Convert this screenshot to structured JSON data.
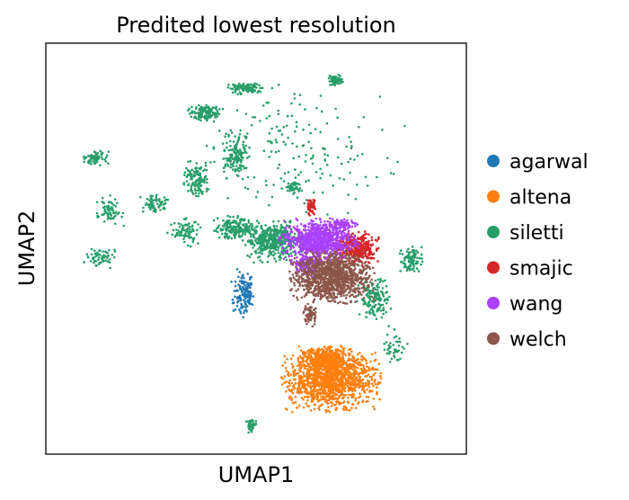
{
  "chart_data": {
    "type": "scatter",
    "title": "Predited lowest resolution",
    "xlabel": "UMAP1",
    "ylabel": "UMAP2",
    "xticks": [],
    "yticks": [],
    "grid": false,
    "legend_position": "right",
    "series": [
      {
        "name": "agarwal",
        "color": "#1f77b4",
        "clusters": [
          {
            "cx": 4.7,
            "cy": 3.9,
            "rx": 0.25,
            "ry": 0.55,
            "count": 140
          }
        ]
      },
      {
        "name": "altena",
        "color": "#ff7f0e",
        "clusters": [
          {
            "cx": 6.8,
            "cy": 1.8,
            "rx": 1.0,
            "ry": 0.65,
            "count": 1300
          },
          {
            "cx": 6.6,
            "cy": 2.3,
            "rx": 0.55,
            "ry": 0.3,
            "count": 350
          }
        ]
      },
      {
        "name": "siletti",
        "color": "#279e68",
        "clusters": [
          {
            "cx": 5.4,
            "cy": 5.2,
            "rx": 0.6,
            "ry": 0.45,
            "count": 420
          },
          {
            "cx": 4.5,
            "cy": 5.5,
            "rx": 0.45,
            "ry": 0.25,
            "count": 180
          },
          {
            "cx": 6.9,
            "cy": 9.1,
            "rx": 0.18,
            "ry": 0.12,
            "count": 70
          },
          {
            "cx": 3.8,
            "cy": 8.3,
            "rx": 0.35,
            "ry": 0.18,
            "count": 140
          },
          {
            "cx": 4.8,
            "cy": 8.9,
            "rx": 0.4,
            "ry": 0.12,
            "count": 110
          },
          {
            "cx": 4.5,
            "cy": 7.3,
            "rx": 0.3,
            "ry": 0.5,
            "count": 150
          },
          {
            "cx": 3.6,
            "cy": 6.7,
            "rx": 0.3,
            "ry": 0.4,
            "count": 120
          },
          {
            "cx": 1.2,
            "cy": 7.2,
            "rx": 0.25,
            "ry": 0.15,
            "count": 70
          },
          {
            "cx": 1.5,
            "cy": 5.9,
            "rx": 0.3,
            "ry": 0.35,
            "count": 70
          },
          {
            "cx": 2.6,
            "cy": 6.1,
            "rx": 0.3,
            "ry": 0.2,
            "count": 60
          },
          {
            "cx": 3.3,
            "cy": 5.4,
            "rx": 0.35,
            "ry": 0.3,
            "count": 80
          },
          {
            "cx": 1.3,
            "cy": 4.8,
            "rx": 0.35,
            "ry": 0.25,
            "count": 60
          },
          {
            "cx": 8.7,
            "cy": 4.7,
            "rx": 0.25,
            "ry": 0.3,
            "count": 100
          },
          {
            "cx": 7.8,
            "cy": 3.8,
            "rx": 0.35,
            "ry": 0.45,
            "count": 160
          },
          {
            "cx": 5.9,
            "cy": 6.5,
            "rx": 0.15,
            "ry": 0.15,
            "count": 40
          },
          {
            "cx": 8.3,
            "cy": 2.6,
            "rx": 0.25,
            "ry": 0.45,
            "count": 45
          },
          {
            "cx": 4.9,
            "cy": 0.7,
            "rx": 0.12,
            "ry": 0.15,
            "count": 35
          },
          {
            "cx": 6.0,
            "cy": 7.4,
            "rx": 2.2,
            "ry": 1.4,
            "count": 170
          }
        ]
      },
      {
        "name": "smajic",
        "color": "#d62728",
        "clusters": [
          {
            "cx": 7.4,
            "cy": 5.0,
            "rx": 0.45,
            "ry": 0.35,
            "count": 350
          },
          {
            "cx": 6.3,
            "cy": 6.0,
            "rx": 0.12,
            "ry": 0.2,
            "count": 50
          }
        ]
      },
      {
        "name": "wang",
        "color": "#aa40fc",
        "clusters": [
          {
            "cx": 6.5,
            "cy": 5.2,
            "rx": 0.8,
            "ry": 0.45,
            "count": 900
          },
          {
            "cx": 6.2,
            "cy": 4.6,
            "rx": 0.3,
            "ry": 0.25,
            "count": 130
          },
          {
            "cx": 7.1,
            "cy": 5.6,
            "rx": 0.3,
            "ry": 0.1,
            "count": 80
          }
        ]
      },
      {
        "name": "welch",
        "color": "#8c564b",
        "clusters": [
          {
            "cx": 6.8,
            "cy": 4.3,
            "rx": 0.85,
            "ry": 0.55,
            "count": 1100
          },
          {
            "cx": 6.3,
            "cy": 3.4,
            "rx": 0.15,
            "ry": 0.25,
            "count": 60
          }
        ]
      }
    ]
  }
}
